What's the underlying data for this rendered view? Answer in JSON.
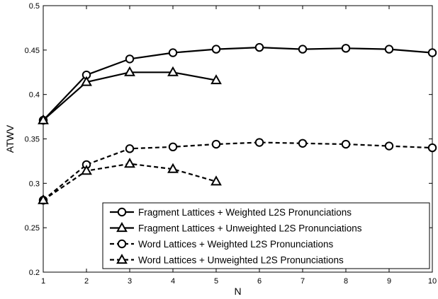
{
  "chart_data": {
    "type": "line",
    "title": "",
    "xlabel": "N",
    "ylabel": "ATWV",
    "xlim": [
      1,
      10
    ],
    "ylim": [
      0.2,
      0.5
    ],
    "xticks": [
      1,
      2,
      3,
      4,
      5,
      6,
      7,
      8,
      9,
      10
    ],
    "yticks": [
      0.2,
      0.25,
      0.3,
      0.35,
      0.4,
      0.45,
      0.5
    ],
    "ytick_labels": [
      "0.2",
      "0.25",
      "0.3",
      "0.35",
      "0.4",
      "0.45",
      "0.5"
    ],
    "grid": false,
    "legend_position": "bottom-right",
    "series": [
      {
        "name": "Fragment Lattices + Weighted L2S Pronunciations",
        "marker": "circle",
        "dash": "solid",
        "color": "#000000",
        "x": [
          1,
          2,
          3,
          4,
          5,
          6,
          7,
          8,
          9,
          10
        ],
        "values": [
          0.371,
          0.422,
          0.44,
          0.447,
          0.451,
          0.453,
          0.451,
          0.452,
          0.451,
          0.447
        ]
      },
      {
        "name": "Fragment Lattices + Unweighted L2S Pronunciations",
        "marker": "triangle",
        "dash": "solid",
        "color": "#000000",
        "x": [
          1,
          2,
          3,
          4,
          5
        ],
        "values": [
          0.371,
          0.414,
          0.425,
          0.425,
          0.416
        ]
      },
      {
        "name": "Word Lattices + Weighted L2S Pronunciations",
        "marker": "circle",
        "dash": "dashed",
        "color": "#000000",
        "x": [
          1,
          2,
          3,
          4,
          5,
          6,
          7,
          8,
          9,
          10
        ],
        "values": [
          0.281,
          0.321,
          0.339,
          0.341,
          0.344,
          0.346,
          0.345,
          0.344,
          0.342,
          0.34
        ]
      },
      {
        "name": "Word Lattices + Unweighted L2S Pronunciations",
        "marker": "triangle",
        "dash": "dashed",
        "color": "#000000",
        "x": [
          1,
          2,
          3,
          4,
          5
        ],
        "values": [
          0.281,
          0.314,
          0.322,
          0.316,
          0.302
        ]
      }
    ]
  }
}
